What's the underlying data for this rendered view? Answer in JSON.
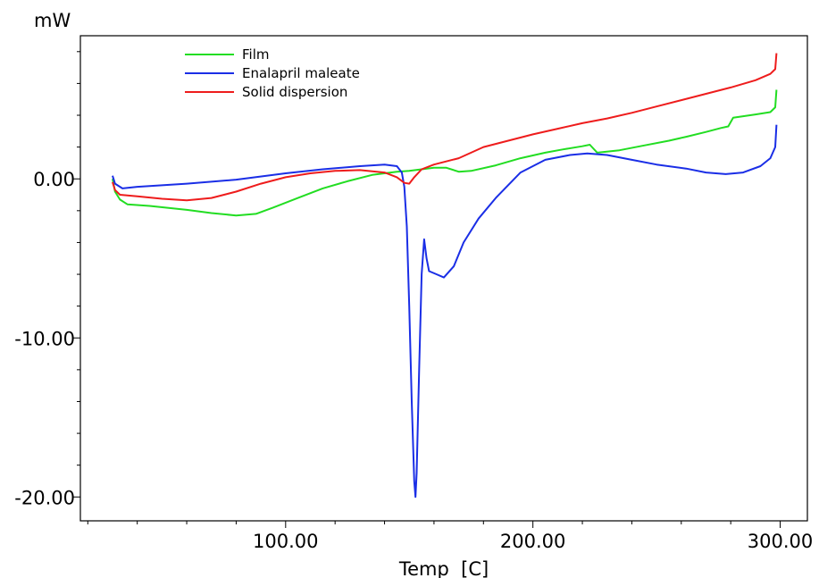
{
  "chart_data": {
    "type": "line",
    "xlabel": "Temp  [C]",
    "ylabel": "mW",
    "xlim": [
      17,
      311
    ],
    "ylim": [
      -21.5,
      9.0
    ],
    "x_ticks": [
      {
        "value": 100,
        "label": "100.00"
      },
      {
        "value": 200,
        "label": "200.00"
      },
      {
        "value": 300,
        "label": "300.00"
      }
    ],
    "y_ticks": [
      {
        "value": 0,
        "label": "0.00"
      },
      {
        "value": -10,
        "label": "-10.00"
      },
      {
        "value": -20,
        "label": "-20.00"
      }
    ],
    "grid": false,
    "legend_position": "top-left",
    "series": [
      {
        "name": "Film",
        "color": "#22dd22",
        "points": [
          [
            30,
            0
          ],
          [
            31,
            -0.8
          ],
          [
            33,
            -1.3
          ],
          [
            36,
            -1.6
          ],
          [
            45,
            -1.7
          ],
          [
            60,
            -1.95
          ],
          [
            70,
            -2.15
          ],
          [
            80,
            -2.3
          ],
          [
            88,
            -2.2
          ],
          [
            95,
            -1.8
          ],
          [
            105,
            -1.2
          ],
          [
            115,
            -0.6
          ],
          [
            125,
            -0.15
          ],
          [
            135,
            0.25
          ],
          [
            145,
            0.45
          ],
          [
            150,
            0.5
          ],
          [
            160,
            0.7
          ],
          [
            165,
            0.7
          ],
          [
            170,
            0.45
          ],
          [
            175,
            0.5
          ],
          [
            185,
            0.85
          ],
          [
            195,
            1.3
          ],
          [
            205,
            1.65
          ],
          [
            212,
            1.85
          ],
          [
            220,
            2.05
          ],
          [
            223,
            2.15
          ],
          [
            226,
            1.65
          ],
          [
            235,
            1.8
          ],
          [
            245,
            2.1
          ],
          [
            255,
            2.4
          ],
          [
            262,
            2.65
          ],
          [
            270,
            2.95
          ],
          [
            276,
            3.2
          ],
          [
            279,
            3.3
          ],
          [
            281,
            3.85
          ],
          [
            290,
            4.05
          ],
          [
            296,
            4.2
          ],
          [
            298,
            4.5
          ],
          [
            298.5,
            5.6
          ]
        ]
      },
      {
        "name": "Enalapril maleate",
        "color": "#1a2ee6",
        "points": [
          [
            30,
            0.2
          ],
          [
            31,
            -0.3
          ],
          [
            34,
            -0.6
          ],
          [
            40,
            -0.5
          ],
          [
            60,
            -0.3
          ],
          [
            80,
            -0.05
          ],
          [
            100,
            0.35
          ],
          [
            115,
            0.6
          ],
          [
            130,
            0.8
          ],
          [
            140,
            0.9
          ],
          [
            145,
            0.8
          ],
          [
            147,
            0.4
          ],
          [
            148,
            -0.5
          ],
          [
            149,
            -3
          ],
          [
            150,
            -8
          ],
          [
            151,
            -14
          ],
          [
            152,
            -19
          ],
          [
            152.5,
            -20
          ],
          [
            153,
            -18.5
          ],
          [
            154,
            -12
          ],
          [
            155,
            -6
          ],
          [
            156,
            -3.8
          ],
          [
            157,
            -5
          ],
          [
            158,
            -5.8
          ],
          [
            161,
            -6.0
          ],
          [
            164,
            -6.2
          ],
          [
            168,
            -5.5
          ],
          [
            172,
            -4
          ],
          [
            178,
            -2.5
          ],
          [
            185,
            -1.2
          ],
          [
            195,
            0.4
          ],
          [
            205,
            1.2
          ],
          [
            215,
            1.5
          ],
          [
            222,
            1.6
          ],
          [
            230,
            1.5
          ],
          [
            240,
            1.2
          ],
          [
            250,
            0.9
          ],
          [
            262,
            0.65
          ],
          [
            270,
            0.4
          ],
          [
            278,
            0.3
          ],
          [
            285,
            0.4
          ],
          [
            292,
            0.8
          ],
          [
            296,
            1.3
          ],
          [
            298,
            2.0
          ],
          [
            298.5,
            3.4
          ]
        ]
      },
      {
        "name": "Solid dispersion",
        "color": "#ee1c1c",
        "points": [
          [
            30,
            -0.2
          ],
          [
            31,
            -0.7
          ],
          [
            33,
            -1.0
          ],
          [
            40,
            -1.1
          ],
          [
            50,
            -1.25
          ],
          [
            60,
            -1.35
          ],
          [
            70,
            -1.2
          ],
          [
            80,
            -0.8
          ],
          [
            90,
            -0.3
          ],
          [
            100,
            0.1
          ],
          [
            110,
            0.35
          ],
          [
            120,
            0.5
          ],
          [
            130,
            0.55
          ],
          [
            140,
            0.4
          ],
          [
            145,
            0.1
          ],
          [
            148,
            -0.25
          ],
          [
            150,
            -0.3
          ],
          [
            152,
            0.1
          ],
          [
            155,
            0.6
          ],
          [
            160,
            0.9
          ],
          [
            170,
            1.3
          ],
          [
            180,
            2.0
          ],
          [
            190,
            2.4
          ],
          [
            200,
            2.8
          ],
          [
            210,
            3.15
          ],
          [
            220,
            3.5
          ],
          [
            230,
            3.8
          ],
          [
            240,
            4.15
          ],
          [
            250,
            4.55
          ],
          [
            260,
            4.95
          ],
          [
            270,
            5.35
          ],
          [
            280,
            5.75
          ],
          [
            290,
            6.2
          ],
          [
            296,
            6.6
          ],
          [
            298,
            6.9
          ],
          [
            298.5,
            7.9
          ]
        ]
      }
    ]
  }
}
